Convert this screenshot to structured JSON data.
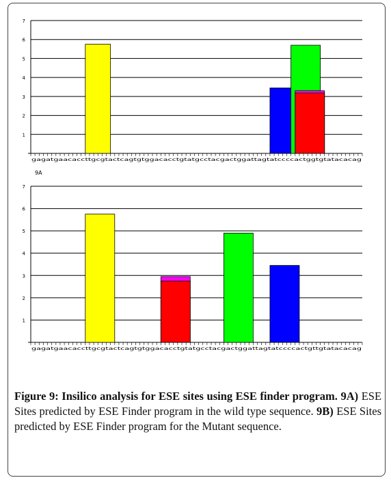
{
  "panel_label_a": "9A",
  "caption": {
    "title": "Figure 9: Insilico analysis for ESE sites using ESE finder program.",
    "part_a_label": "9A)",
    "part_a_text": "ESE Sites predicted by ESE Finder program in the wild type sequence.",
    "part_b_label": "9B)",
    "part_b_text": "ESE Sites predicted by ESE Finder program for the Mutant sequence."
  },
  "chart_data": [
    {
      "type": "bar",
      "id": "9A",
      "ylim": [
        0,
        7
      ],
      "yticks": [
        1,
        2,
        3,
        4,
        5,
        6,
        7
      ],
      "grid": true,
      "sequence": "gagatgaacaccttgcgtactcagtgtggacacctgtatgcctacgactggattagtatccccactggtgtatacacag",
      "bars": [
        {
          "start": 13,
          "end": 19,
          "value": 5.75,
          "color": "#ffff00"
        },
        {
          "start": 57,
          "end": 64,
          "value": 3.45,
          "color": "#0000ff"
        },
        {
          "start": 62,
          "end": 69,
          "value": 5.7,
          "color": "#00ff00"
        },
        {
          "start": 63,
          "end": 70,
          "value": 3.3,
          "color": "#ff00ff"
        },
        {
          "start": 63,
          "end": 70,
          "value": 3.18,
          "color": "#ff0000"
        }
      ]
    },
    {
      "type": "bar",
      "id": "9B",
      "ylim": [
        0,
        7
      ],
      "yticks": [
        1,
        2,
        3,
        4,
        5,
        6,
        7
      ],
      "grid": true,
      "sequence": "gagatgaacaccttgcgtactcagtgtggacacctgtatgcctacgactggattagtatccccactgttgtatacacag",
      "bars": [
        {
          "start": 13,
          "end": 20,
          "value": 5.75,
          "color": "#ffff00"
        },
        {
          "start": 31,
          "end": 38,
          "value": 2.95,
          "color": "#ff00ff"
        },
        {
          "start": 31,
          "end": 38,
          "value": 2.75,
          "color": "#ff0000"
        },
        {
          "start": 46,
          "end": 53,
          "value": 4.9,
          "color": "#00ff00"
        },
        {
          "start": 57,
          "end": 64,
          "value": 3.45,
          "color": "#0000ff"
        }
      ]
    }
  ]
}
